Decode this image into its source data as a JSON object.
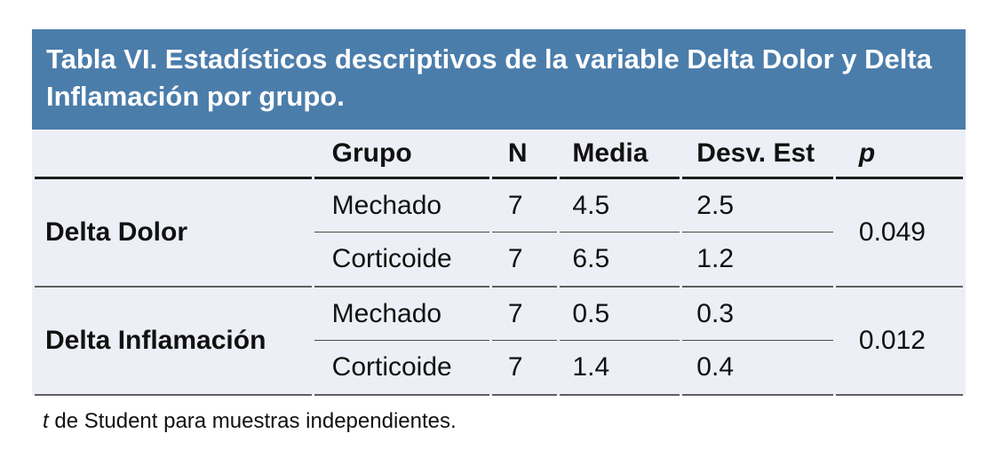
{
  "colors": {
    "title_band_bg": "#4b7dab",
    "title_text": "#ffffff",
    "body_row_bg": "#edeff6",
    "header_rule": "#1c1c1c",
    "group_rule": "#5f5f5f"
  },
  "table": {
    "title": "Tabla VI. Estadísticos descriptivos de la variable Delta Dolor y Delta Inflamación por grupo.",
    "columns": {
      "variable": "",
      "grupo": "Grupo",
      "n": "N",
      "media": "Media",
      "desv": "Desv. Est",
      "p": "p"
    },
    "groups": [
      {
        "variable": "Delta Dolor",
        "p": "0.049",
        "rows": [
          {
            "grupo": "Mechado",
            "n": "7",
            "media": "4.5",
            "desv": "2.5"
          },
          {
            "grupo": "Corticoide",
            "n": "7",
            "media": "6.5",
            "desv": "1.2"
          }
        ]
      },
      {
        "variable": "Delta Inflamación",
        "p": "0.012",
        "rows": [
          {
            "grupo": "Mechado",
            "n": "7",
            "media": "0.5",
            "desv": "0.3"
          },
          {
            "grupo": "Corticoide",
            "n": "7",
            "media": "1.4",
            "desv": "0.4"
          }
        ]
      }
    ],
    "footnote_symbol": "t",
    "footnote_text": " de Student para muestras independientes."
  }
}
